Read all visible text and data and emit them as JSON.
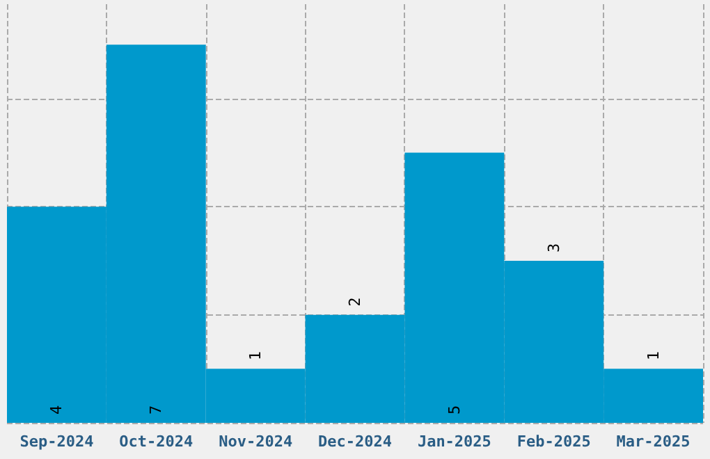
{
  "chart_data": {
    "type": "bar",
    "categories": [
      "Sep-2024",
      "Oct-2024",
      "Nov-2024",
      "Dec-2024",
      "Jan-2025",
      "Feb-2025",
      "Mar-2025"
    ],
    "values": [
      4,
      7,
      1,
      2,
      5,
      3,
      1
    ],
    "color": "#0099cc",
    "data_labels": true,
    "ylim": [
      0,
      7.75
    ],
    "yticks": [
      {
        "value": 0,
        "label": null
      },
      {
        "value": 2,
        "label": null
      },
      {
        "value": 4,
        "label": null
      },
      {
        "value": 6,
        "label": null
      }
    ],
    "tick_labels": "x",
    "grid": true
  }
}
